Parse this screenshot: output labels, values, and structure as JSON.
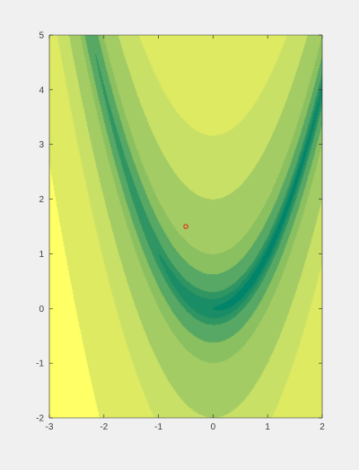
{
  "chart_data": {
    "type": "contour",
    "function": "rosenbrock",
    "title": "",
    "xlabel": "",
    "ylabel": "",
    "xlim": [
      -3,
      2
    ],
    "ylim": [
      -2,
      5
    ],
    "x_ticks": [
      -3,
      -2,
      -1,
      0,
      1,
      2
    ],
    "y_ticks": [
      -2,
      -1,
      0,
      1,
      2,
      3,
      4,
      5
    ],
    "contour_levels": [
      0,
      1,
      4,
      10,
      40,
      100,
      400,
      1000,
      4000
    ],
    "level_colors": [
      "#00846a",
      "#1a8c66",
      "#2f9562",
      "#57a864",
      "#8bc060",
      "#a4cc64",
      "#c9e066",
      "#ddea62",
      "#ffff66"
    ],
    "marker": {
      "x": -0.5,
      "y": 1.5,
      "color": "#e03020"
    }
  }
}
